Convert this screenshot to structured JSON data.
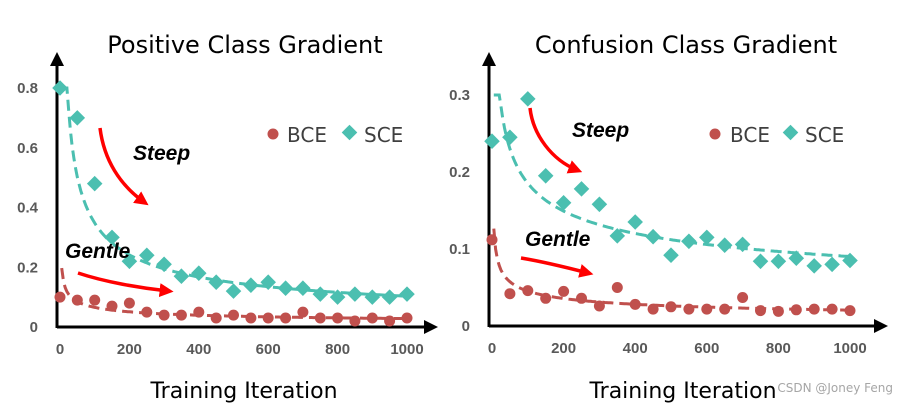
{
  "colors": {
    "bce": "#c0504d",
    "sce": "#4bbfb0",
    "arrow": "#ff0000",
    "axis": "#000000"
  },
  "watermark": "CSDN @Joney Feng",
  "chart_data": [
    {
      "type": "scatter",
      "title": "Positive Class Gradient",
      "xlabel": "Training Iteration",
      "ylabel": "",
      "xlim": [
        0,
        1000
      ],
      "ylim": [
        0,
        0.8
      ],
      "xticks": [
        "0",
        "200",
        "400",
        "600",
        "800",
        "1000"
      ],
      "yticks": [
        "0",
        "0.2",
        "0.4",
        "0.6",
        "0.8"
      ],
      "legend": [
        "BCE",
        "SCE"
      ],
      "legend_position": "top-right",
      "annotations": [
        "Steep",
        "Gentle"
      ],
      "series": [
        {
          "name": "BCE",
          "marker": "circle",
          "x": [
            0,
            50,
            100,
            150,
            200,
            250,
            300,
            350,
            400,
            450,
            500,
            550,
            600,
            650,
            700,
            750,
            800,
            850,
            900,
            950,
            1000
          ],
          "y": [
            0.1,
            0.09,
            0.09,
            0.07,
            0.08,
            0.05,
            0.04,
            0.04,
            0.05,
            0.03,
            0.04,
            0.03,
            0.03,
            0.03,
            0.05,
            0.03,
            0.03,
            0.02,
            0.03,
            0.02,
            0.03
          ]
        },
        {
          "name": "SCE",
          "marker": "diamond",
          "x": [
            0,
            50,
            100,
            150,
            200,
            250,
            300,
            350,
            400,
            450,
            500,
            550,
            600,
            650,
            700,
            750,
            800,
            850,
            900,
            950,
            1000
          ],
          "y": [
            0.8,
            0.7,
            0.48,
            0.3,
            0.22,
            0.24,
            0.21,
            0.17,
            0.18,
            0.15,
            0.12,
            0.14,
            0.15,
            0.13,
            0.13,
            0.11,
            0.1,
            0.11,
            0.1,
            0.1,
            0.11
          ]
        }
      ]
    },
    {
      "type": "scatter",
      "title": "Confusion Class Gradient",
      "xlabel": "Training Iteration",
      "ylabel": "",
      "xlim": [
        0,
        1000
      ],
      "ylim": [
        0,
        0.3
      ],
      "xticks": [
        "0",
        "200",
        "400",
        "600",
        "800",
        "1000"
      ],
      "yticks": [
        "0",
        "0.1",
        "0.2",
        "0.3"
      ],
      "legend": [
        "BCE",
        "SCE"
      ],
      "legend_position": "top-right",
      "annotations": [
        "Steep",
        "Gentle"
      ],
      "series": [
        {
          "name": "BCE",
          "marker": "circle",
          "x": [
            0,
            50,
            100,
            150,
            200,
            250,
            300,
            350,
            400,
            450,
            500,
            550,
            600,
            650,
            700,
            750,
            800,
            850,
            900,
            950,
            1000
          ],
          "y": [
            0.112,
            0.042,
            0.046,
            0.036,
            0.045,
            0.036,
            0.026,
            0.05,
            0.028,
            0.022,
            0.025,
            0.022,
            0.022,
            0.022,
            0.037,
            0.02,
            0.019,
            0.021,
            0.022,
            0.022,
            0.02
          ]
        },
        {
          "name": "SCE",
          "marker": "diamond",
          "x": [
            0,
            50,
            100,
            150,
            200,
            250,
            300,
            350,
            400,
            450,
            500,
            550,
            600,
            650,
            700,
            750,
            800,
            850,
            900,
            950,
            1000
          ],
          "y": [
            0.24,
            0.245,
            0.295,
            0.195,
            0.16,
            0.178,
            0.158,
            0.117,
            0.135,
            0.116,
            0.092,
            0.11,
            0.115,
            0.105,
            0.106,
            0.084,
            0.084,
            0.088,
            0.078,
            0.08,
            0.085
          ]
        }
      ]
    }
  ]
}
